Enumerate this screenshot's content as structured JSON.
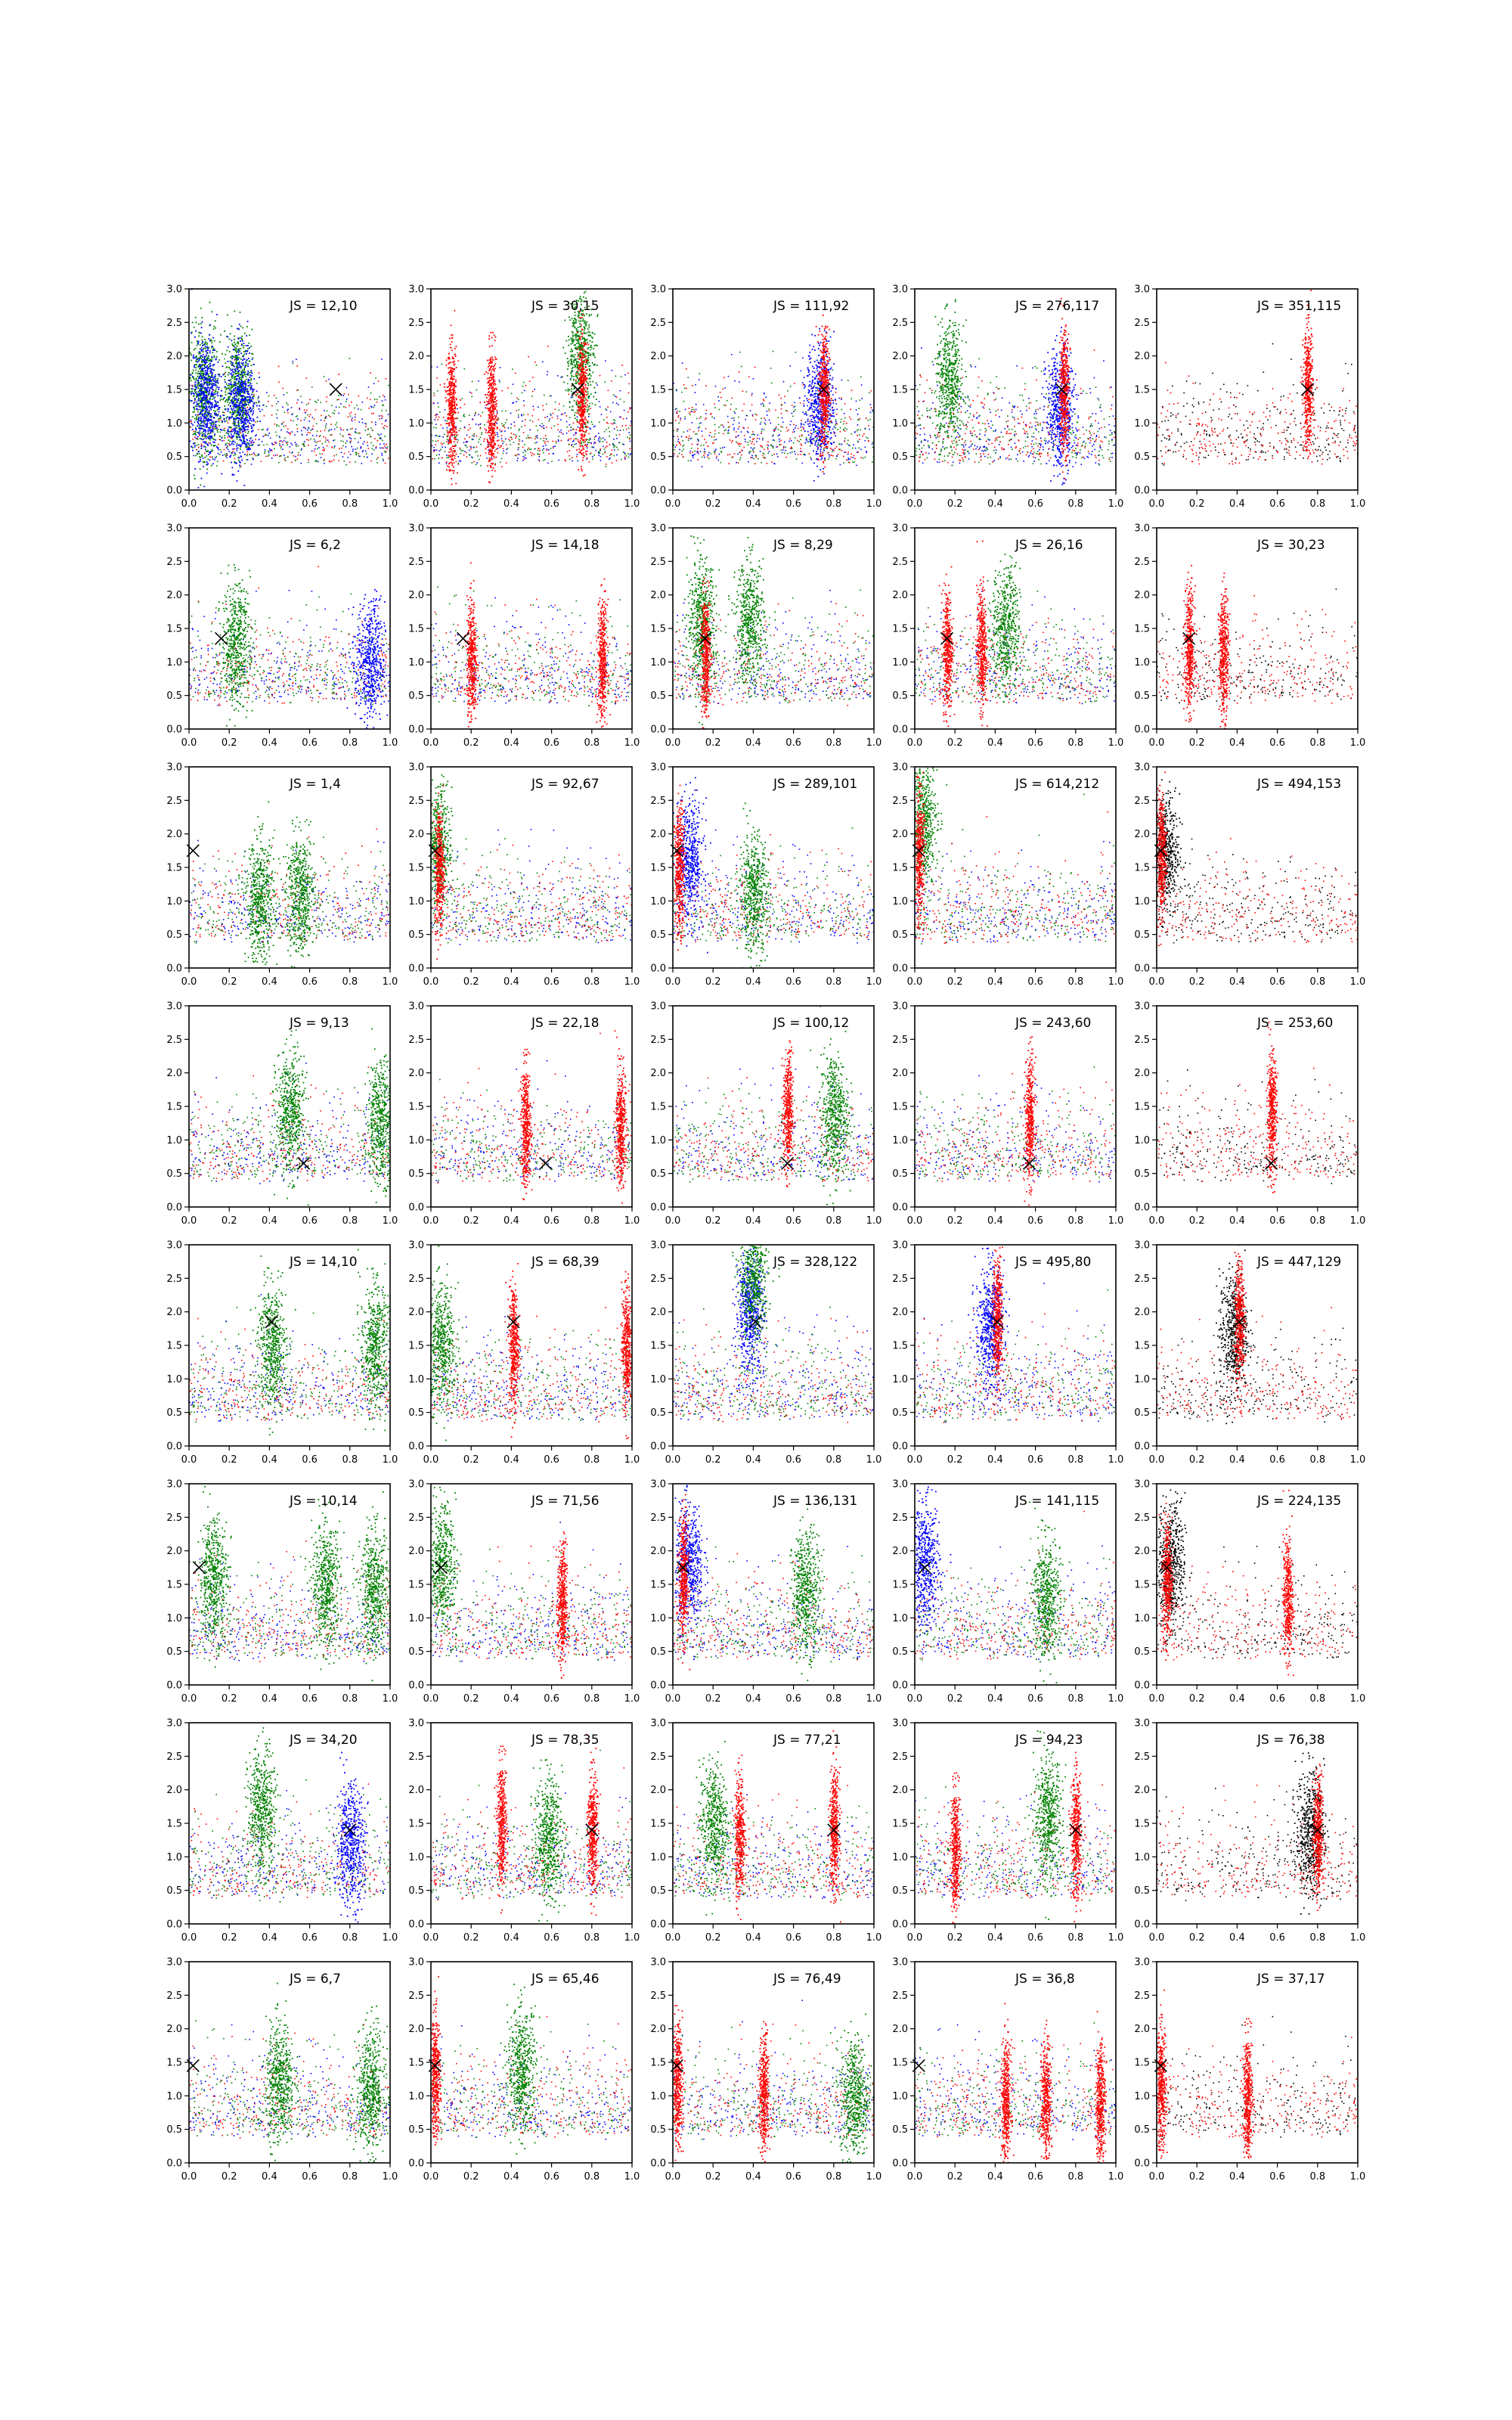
{
  "figure": {
    "rows": 8,
    "cols": 5,
    "xlim": [
      0.0,
      1.0
    ],
    "ylim": [
      0.0,
      3.0
    ],
    "xticks": [
      "0.0",
      "0.2",
      "0.4",
      "0.6",
      "0.8",
      "1.0"
    ],
    "yticks": [
      "0.0",
      "0.5",
      "1.0",
      "1.5",
      "2.0",
      "2.5",
      "3.0"
    ],
    "colors": {
      "blue": "#0000ff",
      "green": "#008000",
      "red": "#ff0000",
      "black": "#000000",
      "marker": "#000000",
      "axes": "#000000"
    }
  },
  "chart_data": [
    {
      "type": "scatter",
      "row": 1,
      "col": 1,
      "label": "JS = 12,10",
      "marker": {
        "x": 0.73,
        "y": 1.5
      },
      "series": [
        "red",
        "green",
        "blue"
      ],
      "clusters": [
        {
          "color": "green",
          "x": 0.07,
          "y": 1.5
        },
        {
          "color": "green",
          "x": 0.24,
          "y": 1.5
        },
        {
          "color": "blue",
          "x": 0.08,
          "y": 1.4
        },
        {
          "color": "blue",
          "x": 0.26,
          "y": 1.3
        }
      ]
    },
    {
      "type": "scatter",
      "row": 1,
      "col": 2,
      "label": "JS = 30,15",
      "marker": {
        "x": 0.73,
        "y": 1.5
      },
      "series": [
        "red",
        "blue",
        "green"
      ],
      "clusters": [
        {
          "color": "green",
          "x": 0.74,
          "y": 2.0
        },
        {
          "color": "red",
          "x": 0.75,
          "y": 1.4
        },
        {
          "color": "red",
          "x": 0.1,
          "y": 1.2
        },
        {
          "color": "red",
          "x": 0.3,
          "y": 1.2
        }
      ]
    },
    {
      "type": "scatter",
      "row": 1,
      "col": 3,
      "label": "JS = 111,92",
      "marker": {
        "x": 0.75,
        "y": 1.5
      },
      "series": [
        "blue",
        "green",
        "red"
      ],
      "clusters": [
        {
          "color": "blue",
          "x": 0.73,
          "y": 1.3
        },
        {
          "color": "red",
          "x": 0.75,
          "y": 1.5
        }
      ]
    },
    {
      "type": "scatter",
      "row": 1,
      "col": 4,
      "label": "JS = 276,117",
      "marker": {
        "x": 0.73,
        "y": 1.5
      },
      "series": [
        "blue",
        "green",
        "red"
      ],
      "clusters": [
        {
          "color": "green",
          "x": 0.17,
          "y": 1.6
        },
        {
          "color": "blue",
          "x": 0.72,
          "y": 1.2
        },
        {
          "color": "red",
          "x": 0.74,
          "y": 1.5
        }
      ]
    },
    {
      "type": "scatter",
      "row": 1,
      "col": 5,
      "label": "JS = 351,115",
      "marker": {
        "x": 0.75,
        "y": 1.5
      },
      "series": [
        "black",
        "red"
      ],
      "clusters": [
        {
          "color": "red",
          "x": 0.75,
          "y": 1.5
        }
      ]
    },
    {
      "type": "scatter",
      "row": 2,
      "col": 1,
      "label": "JS = 6,2",
      "marker": {
        "x": 0.16,
        "y": 1.35
      },
      "series": [
        "red",
        "green",
        "blue"
      ],
      "clusters": [
        {
          "color": "green",
          "x": 0.23,
          "y": 1.3
        },
        {
          "color": "blue",
          "x": 0.9,
          "y": 1.0
        }
      ]
    },
    {
      "type": "scatter",
      "row": 2,
      "col": 2,
      "label": "JS = 14,18",
      "marker": {
        "x": 0.16,
        "y": 1.35
      },
      "series": [
        "red",
        "green",
        "blue"
      ],
      "clusters": [
        {
          "color": "red",
          "x": 0.2,
          "y": 1.0
        },
        {
          "color": "red",
          "x": 0.85,
          "y": 1.0
        }
      ]
    },
    {
      "type": "scatter",
      "row": 2,
      "col": 3,
      "label": "JS = 8,29",
      "marker": {
        "x": 0.16,
        "y": 1.35
      },
      "series": [
        "red",
        "blue",
        "green"
      ],
      "clusters": [
        {
          "color": "green",
          "x": 0.14,
          "y": 1.6
        },
        {
          "color": "green",
          "x": 0.38,
          "y": 1.6
        },
        {
          "color": "red",
          "x": 0.16,
          "y": 1.1
        }
      ]
    },
    {
      "type": "scatter",
      "row": 2,
      "col": 4,
      "label": "JS = 26,16",
      "marker": {
        "x": 0.16,
        "y": 1.35
      },
      "series": [
        "blue",
        "green",
        "red"
      ],
      "clusters": [
        {
          "color": "green",
          "x": 0.45,
          "y": 1.5
        },
        {
          "color": "red",
          "x": 0.16,
          "y": 1.2
        },
        {
          "color": "red",
          "x": 0.33,
          "y": 1.2
        }
      ]
    },
    {
      "type": "scatter",
      "row": 2,
      "col": 5,
      "label": "JS = 30,23",
      "marker": {
        "x": 0.16,
        "y": 1.35
      },
      "series": [
        "black",
        "red"
      ],
      "clusters": [
        {
          "color": "red",
          "x": 0.16,
          "y": 1.2
        },
        {
          "color": "red",
          "x": 0.33,
          "y": 1.1
        }
      ]
    },
    {
      "type": "scatter",
      "row": 3,
      "col": 1,
      "label": "JS = 1,4",
      "marker": {
        "x": 0.02,
        "y": 1.75
      },
      "series": [
        "red",
        "green",
        "blue"
      ],
      "clusters": [
        {
          "color": "green",
          "x": 0.35,
          "y": 1.0
        },
        {
          "color": "green",
          "x": 0.55,
          "y": 1.1
        }
      ]
    },
    {
      "type": "scatter",
      "row": 3,
      "col": 2,
      "label": "JS = 92,67",
      "marker": {
        "x": 0.02,
        "y": 1.75
      },
      "series": [
        "blue",
        "red",
        "green"
      ],
      "clusters": [
        {
          "color": "green",
          "x": 0.03,
          "y": 1.8
        },
        {
          "color": "red",
          "x": 0.04,
          "y": 1.5
        }
      ]
    },
    {
      "type": "scatter",
      "row": 3,
      "col": 3,
      "label": "JS = 289,101",
      "marker": {
        "x": 0.02,
        "y": 1.75
      },
      "series": [
        "blue",
        "green",
        "red"
      ],
      "clusters": [
        {
          "color": "blue",
          "x": 0.08,
          "y": 1.6
        },
        {
          "color": "red",
          "x": 0.03,
          "y": 1.5
        },
        {
          "color": "green",
          "x": 0.4,
          "y": 1.1
        }
      ]
    },
    {
      "type": "scatter",
      "row": 3,
      "col": 4,
      "label": "JS = 614,212",
      "marker": {
        "x": 0.02,
        "y": 1.75
      },
      "series": [
        "blue",
        "green",
        "red"
      ],
      "clusters": [
        {
          "color": "green",
          "x": 0.04,
          "y": 2.2
        },
        {
          "color": "red",
          "x": 0.02,
          "y": 1.7
        }
      ]
    },
    {
      "type": "scatter",
      "row": 3,
      "col": 5,
      "label": "JS = 494,153",
      "marker": {
        "x": 0.02,
        "y": 1.75
      },
      "series": [
        "black",
        "red"
      ],
      "clusters": [
        {
          "color": "black",
          "x": 0.04,
          "y": 1.7
        },
        {
          "color": "red",
          "x": 0.02,
          "y": 1.7
        }
      ]
    },
    {
      "type": "scatter",
      "row": 4,
      "col": 1,
      "label": "JS = 9,13",
      "marker": {
        "x": 0.57,
        "y": 0.65
      },
      "series": [
        "red",
        "green",
        "blue"
      ],
      "clusters": [
        {
          "color": "green",
          "x": 0.5,
          "y": 1.4
        },
        {
          "color": "green",
          "x": 0.95,
          "y": 1.3
        }
      ]
    },
    {
      "type": "scatter",
      "row": 4,
      "col": 2,
      "label": "JS = 22,18",
      "marker": {
        "x": 0.57,
        "y": 0.65
      },
      "series": [
        "blue",
        "green",
        "red"
      ],
      "clusters": [
        {
          "color": "red",
          "x": 0.47,
          "y": 1.2
        },
        {
          "color": "red",
          "x": 0.94,
          "y": 1.2
        }
      ]
    },
    {
      "type": "scatter",
      "row": 4,
      "col": 3,
      "label": "JS = 100,12",
      "marker": {
        "x": 0.57,
        "y": 0.65
      },
      "series": [
        "blue",
        "green",
        "red"
      ],
      "clusters": [
        {
          "color": "red",
          "x": 0.57,
          "y": 1.4
        },
        {
          "color": "green",
          "x": 0.8,
          "y": 1.4
        }
      ]
    },
    {
      "type": "scatter",
      "row": 4,
      "col": 4,
      "label": "JS = 243,60",
      "marker": {
        "x": 0.57,
        "y": 0.65
      },
      "series": [
        "blue",
        "green",
        "red"
      ],
      "clusters": [
        {
          "color": "red",
          "x": 0.57,
          "y": 1.3
        }
      ]
    },
    {
      "type": "scatter",
      "row": 4,
      "col": 5,
      "label": "JS = 253,60",
      "marker": {
        "x": 0.57,
        "y": 0.65
      },
      "series": [
        "black",
        "red"
      ],
      "clusters": [
        {
          "color": "red",
          "x": 0.57,
          "y": 1.4
        }
      ]
    },
    {
      "type": "scatter",
      "row": 5,
      "col": 1,
      "label": "JS = 14,10",
      "marker": {
        "x": 0.41,
        "y": 1.85
      },
      "series": [
        "red",
        "green",
        "blue"
      ],
      "clusters": [
        {
          "color": "green",
          "x": 0.41,
          "y": 1.5
        },
        {
          "color": "green",
          "x": 0.92,
          "y": 1.5
        }
      ]
    },
    {
      "type": "scatter",
      "row": 5,
      "col": 2,
      "label": "JS = 68,39",
      "marker": {
        "x": 0.41,
        "y": 1.85
      },
      "series": [
        "blue",
        "green",
        "red"
      ],
      "clusters": [
        {
          "color": "red",
          "x": 0.41,
          "y": 1.5
        },
        {
          "color": "red",
          "x": 0.97,
          "y": 1.5
        },
        {
          "color": "green",
          "x": 0.05,
          "y": 1.5
        }
      ]
    },
    {
      "type": "scatter",
      "row": 5,
      "col": 3,
      "label": "JS = 328,122",
      "marker": {
        "x": 0.41,
        "y": 1.85
      },
      "series": [
        "blue",
        "red",
        "green"
      ],
      "clusters": [
        {
          "color": "blue",
          "x": 0.38,
          "y": 2.0
        },
        {
          "color": "green",
          "x": 0.4,
          "y": 2.5
        }
      ]
    },
    {
      "type": "scatter",
      "row": 5,
      "col": 4,
      "label": "JS = 495,80",
      "marker": {
        "x": 0.41,
        "y": 1.85
      },
      "series": [
        "green",
        "blue",
        "red"
      ],
      "clusters": [
        {
          "color": "blue",
          "x": 0.37,
          "y": 1.8
        },
        {
          "color": "red",
          "x": 0.41,
          "y": 1.9
        }
      ]
    },
    {
      "type": "scatter",
      "row": 5,
      "col": 5,
      "label": "JS = 447,129",
      "marker": {
        "x": 0.41,
        "y": 1.85
      },
      "series": [
        "black",
        "red"
      ],
      "clusters": [
        {
          "color": "black",
          "x": 0.38,
          "y": 1.7
        },
        {
          "color": "red",
          "x": 0.41,
          "y": 1.9
        }
      ]
    },
    {
      "type": "scatter",
      "row": 6,
      "col": 1,
      "label": "JS = 10,14",
      "marker": {
        "x": 0.05,
        "y": 1.75
      },
      "series": [
        "red",
        "green",
        "blue"
      ],
      "clusters": [
        {
          "color": "green",
          "x": 0.12,
          "y": 1.6
        },
        {
          "color": "green",
          "x": 0.68,
          "y": 1.5
        },
        {
          "color": "green",
          "x": 0.92,
          "y": 1.4
        }
      ]
    },
    {
      "type": "scatter",
      "row": 6,
      "col": 2,
      "label": "JS = 71,56",
      "marker": {
        "x": 0.05,
        "y": 1.75
      },
      "series": [
        "blue",
        "green",
        "red"
      ],
      "clusters": [
        {
          "color": "green",
          "x": 0.05,
          "y": 1.8
        },
        {
          "color": "red",
          "x": 0.65,
          "y": 1.2
        }
      ]
    },
    {
      "type": "scatter",
      "row": 6,
      "col": 3,
      "label": "JS = 136,131",
      "marker": {
        "x": 0.05,
        "y": 1.75
      },
      "series": [
        "blue",
        "green",
        "red"
      ],
      "clusters": [
        {
          "color": "blue",
          "x": 0.08,
          "y": 1.8
        },
        {
          "color": "red",
          "x": 0.05,
          "y": 1.6
        },
        {
          "color": "green",
          "x": 0.66,
          "y": 1.4
        }
      ]
    },
    {
      "type": "scatter",
      "row": 6,
      "col": 4,
      "label": "JS = 141,115",
      "marker": {
        "x": 0.05,
        "y": 1.75
      },
      "series": [
        "blue",
        "green",
        "red"
      ],
      "clusters": [
        {
          "color": "blue",
          "x": 0.05,
          "y": 1.8
        },
        {
          "color": "green",
          "x": 0.65,
          "y": 1.3
        }
      ]
    },
    {
      "type": "scatter",
      "row": 6,
      "col": 5,
      "label": "JS = 224,135",
      "marker": {
        "x": 0.05,
        "y": 1.75
      },
      "series": [
        "black",
        "red"
      ],
      "clusters": [
        {
          "color": "black",
          "x": 0.07,
          "y": 1.8
        },
        {
          "color": "red",
          "x": 0.05,
          "y": 1.6
        },
        {
          "color": "red",
          "x": 0.65,
          "y": 1.3
        }
      ]
    },
    {
      "type": "scatter",
      "row": 7,
      "col": 1,
      "label": "JS = 34,20",
      "marker": {
        "x": 0.8,
        "y": 1.4
      },
      "series": [
        "red",
        "blue",
        "green"
      ],
      "clusters": [
        {
          "color": "green",
          "x": 0.36,
          "y": 1.7
        },
        {
          "color": "blue",
          "x": 0.8,
          "y": 1.2
        }
      ]
    },
    {
      "type": "scatter",
      "row": 7,
      "col": 2,
      "label": "JS = 78,35",
      "marker": {
        "x": 0.8,
        "y": 1.4
      },
      "series": [
        "blue",
        "green",
        "red"
      ],
      "clusters": [
        {
          "color": "red",
          "x": 0.35,
          "y": 1.5
        },
        {
          "color": "red",
          "x": 0.8,
          "y": 1.4
        },
        {
          "color": "green",
          "x": 0.58,
          "y": 1.3
        }
      ]
    },
    {
      "type": "scatter",
      "row": 7,
      "col": 3,
      "label": "JS = 77,21",
      "marker": {
        "x": 0.8,
        "y": 1.4
      },
      "series": [
        "blue",
        "green",
        "red"
      ],
      "clusters": [
        {
          "color": "green",
          "x": 0.2,
          "y": 1.5
        },
        {
          "color": "red",
          "x": 0.33,
          "y": 1.3
        },
        {
          "color": "red",
          "x": 0.8,
          "y": 1.4
        }
      ]
    },
    {
      "type": "scatter",
      "row": 7,
      "col": 4,
      "label": "JS = 94,23",
      "marker": {
        "x": 0.8,
        "y": 1.4
      },
      "series": [
        "blue",
        "green",
        "red"
      ],
      "clusters": [
        {
          "color": "green",
          "x": 0.66,
          "y": 1.6
        },
        {
          "color": "red",
          "x": 0.8,
          "y": 1.3
        },
        {
          "color": "red",
          "x": 0.2,
          "y": 1.1
        }
      ]
    },
    {
      "type": "scatter",
      "row": 7,
      "col": 5,
      "label": "JS = 76,38",
      "marker": {
        "x": 0.8,
        "y": 1.4
      },
      "series": [
        "black",
        "red"
      ],
      "clusters": [
        {
          "color": "black",
          "x": 0.76,
          "y": 1.4
        },
        {
          "color": "red",
          "x": 0.8,
          "y": 1.3
        }
      ]
    },
    {
      "type": "scatter",
      "row": 8,
      "col": 1,
      "label": "JS = 6,7",
      "marker": {
        "x": 0.02,
        "y": 1.45
      },
      "series": [
        "red",
        "green",
        "blue"
      ],
      "clusters": [
        {
          "color": "green",
          "x": 0.45,
          "y": 1.2
        },
        {
          "color": "green",
          "x": 0.9,
          "y": 1.1
        }
      ]
    },
    {
      "type": "scatter",
      "row": 8,
      "col": 2,
      "label": "JS = 65,46",
      "marker": {
        "x": 0.02,
        "y": 1.45
      },
      "series": [
        "blue",
        "green",
        "red"
      ],
      "clusters": [
        {
          "color": "green",
          "x": 0.45,
          "y": 1.4
        },
        {
          "color": "red",
          "x": 0.02,
          "y": 1.3
        }
      ]
    },
    {
      "type": "scatter",
      "row": 8,
      "col": 3,
      "label": "JS = 76,49",
      "marker": {
        "x": 0.02,
        "y": 1.45
      },
      "series": [
        "blue",
        "green",
        "red"
      ],
      "clusters": [
        {
          "color": "red",
          "x": 0.02,
          "y": 1.2
        },
        {
          "color": "red",
          "x": 0.45,
          "y": 1.0
        },
        {
          "color": "green",
          "x": 0.9,
          "y": 1.0
        }
      ]
    },
    {
      "type": "scatter",
      "row": 8,
      "col": 4,
      "label": "JS = 36,8",
      "marker": {
        "x": 0.02,
        "y": 1.45
      },
      "series": [
        "blue",
        "green",
        "red"
      ],
      "clusters": [
        {
          "color": "red",
          "x": 0.45,
          "y": 0.9
        },
        {
          "color": "red",
          "x": 0.65,
          "y": 0.9
        },
        {
          "color": "red",
          "x": 0.92,
          "y": 0.9
        }
      ]
    },
    {
      "type": "scatter",
      "row": 8,
      "col": 5,
      "label": "JS = 37,17",
      "marker": {
        "x": 0.02,
        "y": 1.45
      },
      "series": [
        "black",
        "red"
      ],
      "clusters": [
        {
          "color": "red",
          "x": 0.02,
          "y": 1.1
        },
        {
          "color": "red",
          "x": 0.45,
          "y": 1.0
        }
      ]
    }
  ]
}
